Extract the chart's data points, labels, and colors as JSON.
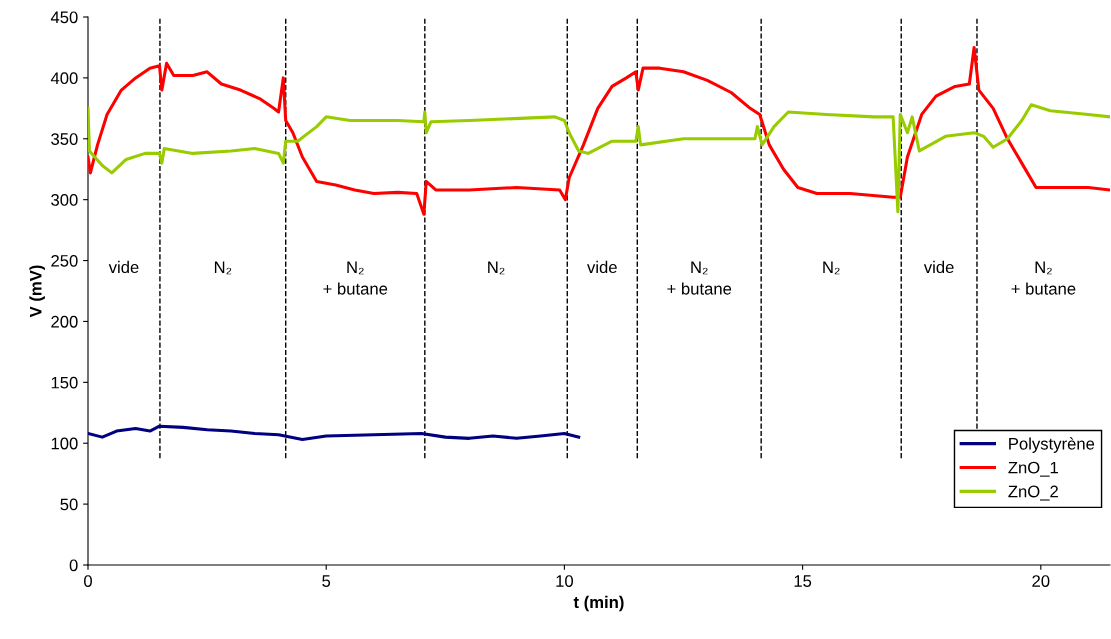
{
  "chart_data": {
    "type": "line",
    "xlabel": "t (min)",
    "ylabel": "V (mV)",
    "xlim": [
      0,
      21.45
    ],
    "xticks": [
      0,
      5,
      10,
      15,
      20
    ],
    "ylim": [
      0,
      450
    ],
    "yticks": [
      0,
      50,
      100,
      150,
      200,
      250,
      300,
      350,
      400,
      450
    ],
    "grid": false,
    "legend": "bottom right",
    "marker": "none",
    "line_style": "solid",
    "series": [
      {
        "name": "Polystyrène",
        "color": "#000080",
        "x": [
          0,
          0.3,
          0.6,
          1.0,
          1.3,
          1.5,
          2.0,
          2.5,
          3,
          3.5,
          4.0,
          4.5,
          5.0,
          6,
          7,
          7.5,
          8,
          8.5,
          9,
          9.5,
          10,
          10.3
        ],
        "values": [
          108,
          105,
          110,
          112,
          110,
          114,
          113,
          111,
          110,
          108,
          107,
          103,
          106,
          107,
          108,
          105,
          104,
          106,
          104,
          106,
          108,
          105
        ]
      },
      {
        "name": "ZnO_1",
        "color": "#ff0000",
        "x": [
          0,
          0.05,
          0.2,
          0.4,
          0.7,
          1.0,
          1.3,
          1.5,
          1.55,
          1.65,
          1.8,
          2.2,
          2.5,
          2.8,
          3.2,
          3.6,
          3.9,
          4.0,
          4.1,
          4.15,
          4.3,
          4.5,
          4.8,
          5.2,
          5.6,
          6.0,
          6.5,
          6.9,
          7.05,
          7.1,
          7.3,
          8,
          9,
          9.9,
          10.02,
          10.1,
          10.4,
          10.7,
          11.0,
          11.3,
          11.5,
          11.55,
          11.65,
          12.0,
          12.5,
          13.0,
          13.5,
          13.9,
          14.1,
          14.3,
          14.6,
          14.9,
          15.3,
          16.0,
          16.9,
          17.05,
          17.2,
          17.5,
          17.8,
          18.2,
          18.5,
          18.6,
          18.7,
          19.0,
          19.3,
          19.6,
          19.9,
          20.5,
          21.0,
          21.45
        ],
        "values": [
          335,
          322,
          345,
          370,
          390,
          400,
          408,
          410,
          390,
          412,
          402,
          402,
          405,
          395,
          390,
          383,
          375,
          372,
          400,
          365,
          355,
          335,
          315,
          312,
          308,
          305,
          306,
          305,
          288,
          315,
          308,
          308,
          310,
          308,
          300,
          318,
          345,
          375,
          393,
          400,
          405,
          390,
          408,
          408,
          405,
          398,
          388,
          375,
          370,
          345,
          325,
          310,
          305,
          305,
          302,
          302,
          335,
          370,
          385,
          393,
          395,
          425,
          390,
          375,
          350,
          330,
          310,
          310,
          310,
          308
        ]
      },
      {
        "name": "ZnO_2",
        "color": "#99cc00",
        "x": [
          0,
          0.03,
          0.3,
          0.5,
          0.8,
          1.2,
          1.5,
          1.55,
          1.6,
          2.2,
          3,
          3.5,
          4.0,
          4.1,
          4.15,
          4.4,
          4.8,
          5.0,
          5.5,
          6.5,
          7.05,
          7.07,
          7.1,
          7.2,
          8,
          9.8,
          10.0,
          10.1,
          10.3,
          10.5,
          11,
          11.5,
          11.55,
          11.6,
          12.5,
          13.5,
          14.0,
          14.05,
          14.15,
          14.4,
          14.7,
          15.5,
          16.5,
          16.9,
          17.0,
          17.05,
          17.2,
          17.3,
          17.45,
          18,
          18.6,
          18.8,
          19.0,
          19.3,
          19.6,
          19.8,
          20.2,
          21,
          21.45
        ],
        "values": [
          375,
          340,
          328,
          322,
          333,
          338,
          338,
          330,
          342,
          338,
          340,
          342,
          338,
          330,
          348,
          348,
          360,
          368,
          365,
          365,
          364,
          372,
          355,
          364,
          365,
          368,
          365,
          355,
          340,
          338,
          348,
          348,
          360,
          345,
          350,
          350,
          350,
          360,
          345,
          360,
          372,
          370,
          368,
          368,
          290,
          370,
          355,
          368,
          340,
          352,
          355,
          352,
          343,
          350,
          365,
          378,
          373,
          370,
          368
        ]
      }
    ],
    "ref_lines": [
      {
        "axis": "x",
        "value": 1.51,
        "color": "#000000",
        "line_style": "dashed"
      },
      {
        "axis": "x",
        "value": 4.15,
        "color": "#000000",
        "line_style": "dashed"
      },
      {
        "axis": "x",
        "value": 7.07,
        "color": "#000000",
        "line_style": "dashed"
      },
      {
        "axis": "x",
        "value": 10.06,
        "color": "#000000",
        "line_style": "dashed"
      },
      {
        "axis": "x",
        "value": 11.53,
        "color": "#000000",
        "line_style": "dashed"
      },
      {
        "axis": "x",
        "value": 14.13,
        "color": "#000000",
        "line_style": "dashed"
      },
      {
        "axis": "x",
        "value": 17.07,
        "color": "#000000",
        "line_style": "dashed"
      },
      {
        "axis": "x",
        "value": 18.66,
        "color": "#000000",
        "line_style": "dashed"
      }
    ],
    "annotations": [
      "vide",
      "N₂",
      "N₂\n+ butane",
      "N₂",
      "vide",
      "N₂\n+ butane",
      "N₂",
      "vide",
      "N₂\n+ butane"
    ]
  }
}
